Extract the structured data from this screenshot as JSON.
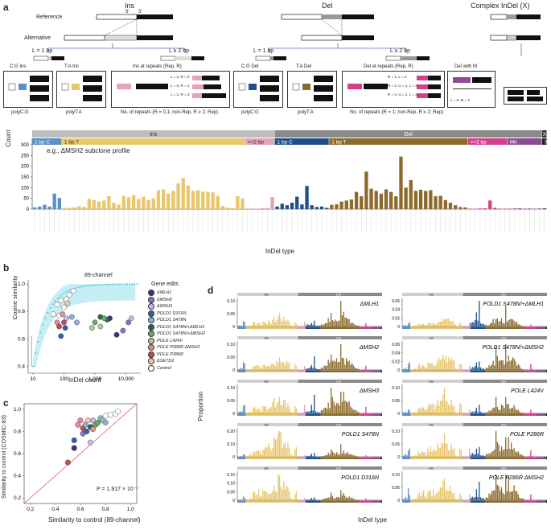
{
  "panel_a": {
    "letter": "a",
    "headers": {
      "ins": "Ins",
      "del": "Del",
      "complex": "Complex InDel (X)"
    },
    "reference_label": "Reference",
    "alternative_label": "Alternative",
    "five_prime": "5′",
    "three_prime": "3′",
    "len1": "L = 1 bp",
    "len2": "L ≥ 2 bp",
    "ins_boxes": [
      {
        "title": "C:G Ins",
        "footer": "polyC:G"
      },
      {
        "title": "T:A Ins",
        "footer": "polyT:A"
      },
      {
        "title": "Ins at repeats (Rep, R)",
        "footer": "No. of repeats (R = 0,1; non-Rep, R ≥ 2; Rep)"
      }
    ],
    "ins_repeat_notes": [
      "L = 2, R = 0",
      "L = 5, R = 1",
      "L = 2, R = 3"
    ],
    "del_boxes": [
      {
        "title": "C:G Del",
        "footer": "polyC:G"
      },
      {
        "title": "T:A Del",
        "footer": "polyT:A"
      },
      {
        "title": "Del at repeats (Rep, R)",
        "footer": "No. of repeats (R = 1; non-Rep, R ≥ 2; Rep)"
      },
      {
        "title": "Del with M",
        "footer": ""
      }
    ],
    "del_repeat_notes": [
      "R = 1, L = 2",
      "R = 2, U = 1, L = 3",
      "R = 4, U = 1, L = 3"
    ],
    "del_m_note": "L = 5, M = 3",
    "eg": "e.g.",
    "chart_title": "e.g., ΔMSH2 subclone profile",
    "ylabel": "Count",
    "xlabel": "InDel type",
    "bands_top": [
      {
        "label": "Ins",
        "color": "#bdbdbd"
      },
      {
        "label": "Del",
        "color": "#8a8a8a"
      },
      {
        "label": "X",
        "color": "#333333"
      }
    ],
    "bands_bottom": [
      {
        "label": "1 bp C",
        "color": "#5b8fc7"
      },
      {
        "label": "1 bp T",
        "color": "#e9c76a"
      },
      {
        "label": ">=2 bp",
        "color": "#e6a2b7"
      },
      {
        "label": "1 bp C",
        "color": "#1f4f8b"
      },
      {
        "label": "1 bp T",
        "color": "#8b6a2b"
      },
      {
        "label": ">=2 bp",
        "color": "#d63f8a"
      },
      {
        "label": "Mh",
        "color": "#8e4a92"
      },
      {
        "label": "X",
        "color": "#222222"
      }
    ],
    "yticks": [
      "0",
      "50",
      "100",
      "150",
      "200",
      "250",
      "300"
    ]
  },
  "panel_b": {
    "letter": "b",
    "title": "89-channel",
    "ylabel": "Cosine similarity",
    "xlabel": "InDel count",
    "yticks": [
      "0.4",
      "0.6",
      "0.8",
      "1.0"
    ],
    "xticks": [
      "10",
      "100",
      "1,000",
      "10,000"
    ],
    "legend_title": "Gene edits",
    "legend": [
      {
        "label": "ΔMLH1",
        "color": "#4a2a8a"
      },
      {
        "label": "ΔMSH2",
        "color": "#8e6fc0"
      },
      {
        "label": "ΔMSH3",
        "color": "#c9b6e4"
      },
      {
        "label": "POLD1 D316N",
        "color": "#3a5fa8"
      },
      {
        "label": "POLD1 S478N",
        "color": "#8db1df"
      },
      {
        "label": "POLD1 S478N/+ΔMLH1",
        "color": "#2a6a3a"
      },
      {
        "label": "POLD1 S478N/+ΔMSH2",
        "color": "#6aa86a"
      },
      {
        "label": "POLE L424V",
        "color": "#a7cf8a"
      },
      {
        "label": "POLE P286R ΔMSH2",
        "color": "#e38aa0"
      },
      {
        "label": "POLE P286R",
        "color": "#c24a5a"
      },
      {
        "label": "ΔSETD2",
        "color": "#f3c9a6"
      },
      {
        "label": "Control",
        "color": "#ffffff"
      }
    ]
  },
  "panel_c": {
    "letter": "c",
    "ylabel": "Similarity to control (COSMIC-83)",
    "xlabel": "Similarity to control (89-channel)",
    "pvalue": "P = 1.917 × 10⁻⁷",
    "yticks": [
      "0.2",
      "0.4",
      "0.6",
      "0.8",
      "1.0"
    ],
    "xticks": [
      "0.2",
      "0.4",
      "0.6",
      "0.8",
      "1.0"
    ]
  },
  "panel_d": {
    "letter": "d",
    "ylabel": "Proportion",
    "xlabel": "InDel type",
    "left": [
      {
        "title": "ΔMLH1",
        "yticks": [
          "0",
          "0.05",
          "0.10"
        ]
      },
      {
        "title": "ΔMSH2",
        "yticks": [
          "0",
          "0.05",
          "0.10"
        ]
      },
      {
        "title": "ΔMSH3",
        "yticks": [
          "0",
          "0.05",
          "0.10"
        ]
      },
      {
        "title": "POLD1 S478N",
        "yticks": [
          "0",
          "0.10",
          "0.20"
        ]
      },
      {
        "title": "POLD1 D316N",
        "yticks": [
          "0",
          "0.05",
          "0.10",
          "0.15"
        ]
      }
    ],
    "right": [
      {
        "title": "POLD1 S478N/+ΔMLH1",
        "yticks": [
          "0",
          "0.02",
          "0.04",
          "0.06"
        ]
      },
      {
        "title": "POLD1 S478N/+ΔMSH2",
        "yticks": [
          "0",
          "0.02",
          "0.04",
          "0.06"
        ]
      },
      {
        "title": "POLE L424V",
        "yticks": [
          "0",
          "0.05",
          "0.10"
        ]
      },
      {
        "title": "POLE P286R",
        "yticks": [
          "0",
          "0.05",
          "0.10"
        ]
      },
      {
        "title": "POLE P286R ΔMSH2",
        "yticks": [
          "0",
          "0.05",
          "0.10"
        ]
      }
    ],
    "band_ins": "Ins",
    "band_del": "Del"
  },
  "chart_data": [
    {
      "type": "bar",
      "title": "e.g., ΔMSH2 subclone profile",
      "xlabel": "InDel type",
      "ylabel": "Count",
      "ylim": [
        0,
        300
      ],
      "groups": [
        {
          "name": "1 bp C Ins",
          "color": "#5b8fc7",
          "values": [
            8,
            12,
            20,
            12,
            72,
            52
          ]
        },
        {
          "name": "1 bp T Ins",
          "color": "#e9c76a",
          "values": [
            4,
            6,
            8,
            14,
            10,
            48,
            42,
            35,
            40,
            60,
            30,
            20,
            62,
            55,
            65,
            48,
            58,
            42,
            50,
            88,
            92,
            72,
            85,
            120,
            145,
            110,
            85,
            88,
            82,
            80,
            78,
            62,
            15,
            8,
            4,
            60,
            50
          ]
        },
        {
          "name": ">=2 bp Ins",
          "color": "#e6a2b7",
          "values": [
            2,
            2,
            1,
            4,
            5,
            56
          ]
        },
        {
          "name": "1 bp C Del",
          "color": "#1f4f8b",
          "values": [
            12,
            25,
            18,
            30,
            58,
            22,
            108,
            18,
            10,
            12,
            6
          ]
        },
        {
          "name": "1 bp T Del",
          "color": "#8b6a2b",
          "values": [
            20,
            22,
            35,
            40,
            45,
            80,
            60,
            175,
            95,
            85,
            72,
            92,
            80,
            60,
            245,
            100,
            135,
            85,
            90,
            85,
            88,
            60,
            62,
            42,
            30,
            18,
            10,
            8
          ]
        },
        {
          "name": ">=2 bp Del",
          "color": "#d63f8a",
          "values": [
            2,
            1,
            3,
            4,
            40,
            6,
            2,
            2
          ]
        },
        {
          "name": "Mh",
          "color": "#8e4a92",
          "values": [
            2,
            3,
            4,
            2,
            3,
            2,
            3
          ]
        },
        {
          "name": "X",
          "color": "#222222",
          "values": [
            3
          ]
        }
      ]
    },
    {
      "type": "scatter",
      "title": "89-channel",
      "xlabel": "InDel count",
      "ylabel": "Cosine similarity",
      "xscale": "log",
      "xlim": [
        7,
        30000
      ],
      "ylim": [
        0.35,
        1.03
      ],
      "series": [
        {
          "name": "Control",
          "color": "#ffffff",
          "points": [
            [
              45,
              0.78
            ],
            [
              60,
              0.85
            ],
            [
              80,
              0.88
            ],
            [
              120,
              0.89
            ],
            [
              150,
              0.92
            ],
            [
              70,
              0.77
            ],
            [
              100,
              0.83
            ],
            [
              200,
              0.95
            ]
          ]
        },
        {
          "name": "ΔMLH1",
          "color": "#4a2a8a",
          "points": [
            [
              5000,
              0.63
            ],
            [
              3000,
              0.75
            ]
          ]
        },
        {
          "name": "ΔMSH2",
          "color": "#8e6fc0",
          "points": [
            [
              12000,
              0.72
            ],
            [
              8000,
              0.66
            ]
          ]
        },
        {
          "name": "ΔMSH3",
          "color": "#c9b6e4",
          "points": [
            [
              15000,
              0.75
            ],
            [
              120,
              0.75
            ]
          ]
        },
        {
          "name": "POLD1 D316N",
          "color": "#3a5fa8",
          "points": [
            [
              80,
              0.62
            ],
            [
              110,
              0.68
            ]
          ]
        },
        {
          "name": "POLD1 S478N",
          "color": "#8db1df",
          "points": [
            [
              180,
              0.76
            ],
            [
              260,
              0.72
            ]
          ]
        },
        {
          "name": "POLD1 S478N/+ΔMLH1",
          "color": "#2a6a3a",
          "points": [
            [
              1500,
              0.76
            ],
            [
              2500,
              0.74
            ]
          ]
        },
        {
          "name": "POLD1 S478N/+ΔMSH2",
          "color": "#6aa86a",
          "points": [
            [
              2000,
              0.75
            ],
            [
              1000,
              0.72
            ]
          ]
        },
        {
          "name": "POLE L424V",
          "color": "#a7cf8a",
          "points": [
            [
              1500,
              0.69
            ],
            [
              800,
              0.68
            ]
          ]
        },
        {
          "name": "POLE P286R ΔMSH2",
          "color": "#e38aa0",
          "points": [
            [
              60,
              0.72
            ],
            [
              90,
              0.78
            ]
          ]
        },
        {
          "name": "POLE P286R",
          "color": "#c24a5a",
          "points": [
            [
              70,
              0.69
            ],
            [
              100,
              0.72
            ]
          ]
        },
        {
          "name": "ΔSETD2",
          "color": "#f3c9a6",
          "points": [
            [
              130,
              0.86
            ]
          ]
        }
      ]
    },
    {
      "type": "scatter",
      "xlabel": "Similarity to control (89-channel)",
      "ylabel": "Similarity to control (COSMIC-83)",
      "xlim": [
        0.15,
        1.05
      ],
      "ylim": [
        0.15,
        1.05
      ],
      "points": [
        [
          0.5,
          0.52,
          "#c24a5a"
        ],
        [
          0.55,
          0.65,
          "#4a2a8a"
        ],
        [
          0.55,
          0.72,
          "#3a5fa8"
        ],
        [
          0.62,
          0.78,
          "#8e6fc0"
        ],
        [
          0.65,
          0.8,
          "#3a5fa8"
        ],
        [
          0.68,
          0.84,
          "#2a6a3a"
        ],
        [
          0.7,
          0.82,
          "#e38aa0"
        ],
        [
          0.72,
          0.86,
          "#6aa86a"
        ],
        [
          0.66,
          0.9,
          "#f3c9a6"
        ],
        [
          0.76,
          0.92,
          "#8db1df"
        ],
        [
          0.78,
          0.9,
          "#a7cf8a"
        ],
        [
          0.8,
          0.94,
          "#ffffff"
        ],
        [
          0.84,
          0.95,
          "#ffffff"
        ],
        [
          0.88,
          0.96,
          "#ffffff"
        ],
        [
          0.9,
          0.98,
          "#ffffff"
        ],
        [
          0.6,
          0.9,
          "#e38aa0"
        ],
        [
          0.62,
          0.83,
          "#c24a5a"
        ],
        [
          0.58,
          0.86,
          "#e38aa0"
        ],
        [
          0.74,
          0.88,
          "#6aa86a"
        ],
        [
          0.7,
          0.9,
          "#c9b6e4"
        ],
        [
          0.68,
          0.7,
          "#c9b6e4"
        ],
        [
          0.8,
          0.88,
          "#8db1df"
        ],
        [
          0.64,
          0.86,
          "#8db1df"
        ]
      ]
    }
  ]
}
